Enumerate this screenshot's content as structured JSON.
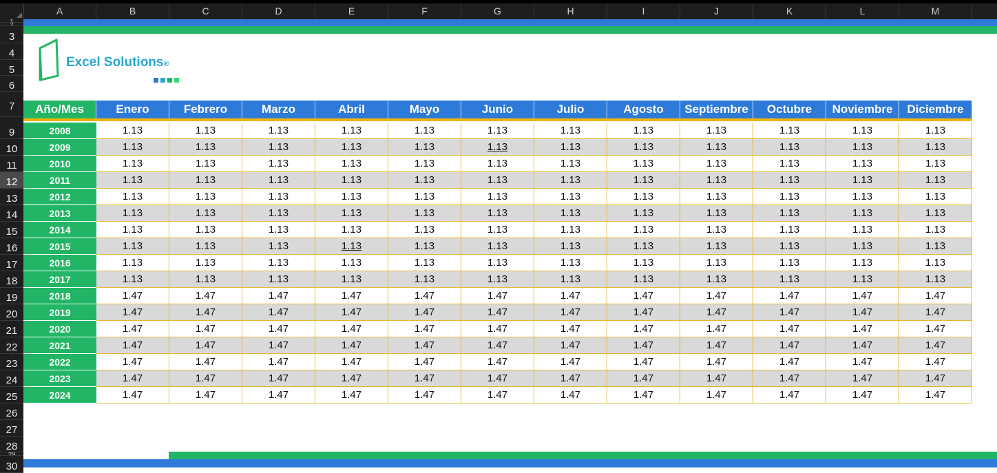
{
  "columns": [
    "A",
    "B",
    "C",
    "D",
    "E",
    "F",
    "G",
    "H",
    "I",
    "J",
    "K",
    "L",
    "M"
  ],
  "row_numbers": [
    "1",
    "2",
    "3",
    "4",
    "5",
    "6",
    "7",
    "9",
    "10",
    "11",
    "12",
    "13",
    "14",
    "15",
    "16",
    "17",
    "18",
    "19",
    "20",
    "21",
    "22",
    "23",
    "24",
    "25",
    "26",
    "27",
    "28",
    "29",
    "30"
  ],
  "selected_row": "12",
  "logo": {
    "brand": "Excel Solutions",
    "registered": "®"
  },
  "table": {
    "header": [
      "Año/Mes",
      "Enero",
      "Febrero",
      "Marzo",
      "Abril",
      "Mayo",
      "Junio",
      "Julio",
      "Agosto",
      "Septiembre",
      "Octubre",
      "Noviembre",
      "Diciembre"
    ],
    "rows": [
      {
        "year": "2008",
        "values": [
          "1.13",
          "1.13",
          "1.13",
          "1.13",
          "1.13",
          "1.13",
          "1.13",
          "1.13",
          "1.13",
          "1.13",
          "1.13",
          "1.13"
        ]
      },
      {
        "year": "2009",
        "values": [
          "1.13",
          "1.13",
          "1.13",
          "1.13",
          "1.13",
          "1.13",
          "1.13",
          "1.13",
          "1.13",
          "1.13",
          "1.13",
          "1.13"
        ]
      },
      {
        "year": "2010",
        "values": [
          "1.13",
          "1.13",
          "1.13",
          "1.13",
          "1.13",
          "1.13",
          "1.13",
          "1.13",
          "1.13",
          "1.13",
          "1.13",
          "1.13"
        ]
      },
      {
        "year": "2011",
        "values": [
          "1.13",
          "1.13",
          "1.13",
          "1.13",
          "1.13",
          "1.13",
          "1.13",
          "1.13",
          "1.13",
          "1.13",
          "1.13",
          "1.13"
        ]
      },
      {
        "year": "2012",
        "values": [
          "1.13",
          "1.13",
          "1.13",
          "1.13",
          "1.13",
          "1.13",
          "1.13",
          "1.13",
          "1.13",
          "1.13",
          "1.13",
          "1.13"
        ]
      },
      {
        "year": "2013",
        "values": [
          "1.13",
          "1.13",
          "1.13",
          "1.13",
          "1.13",
          "1.13",
          "1.13",
          "1.13",
          "1.13",
          "1.13",
          "1.13",
          "1.13"
        ]
      },
      {
        "year": "2014",
        "values": [
          "1.13",
          "1.13",
          "1.13",
          "1.13",
          "1.13",
          "1.13",
          "1.13",
          "1.13",
          "1.13",
          "1.13",
          "1.13",
          "1.13"
        ]
      },
      {
        "year": "2015",
        "values": [
          "1.13",
          "1.13",
          "1.13",
          "1.13",
          "1.13",
          "1.13",
          "1.13",
          "1.13",
          "1.13",
          "1.13",
          "1.13",
          "1.13"
        ]
      },
      {
        "year": "2016",
        "values": [
          "1.13",
          "1.13",
          "1.13",
          "1.13",
          "1.13",
          "1.13",
          "1.13",
          "1.13",
          "1.13",
          "1.13",
          "1.13",
          "1.13"
        ]
      },
      {
        "year": "2017",
        "values": [
          "1.13",
          "1.13",
          "1.13",
          "1.13",
          "1.13",
          "1.13",
          "1.13",
          "1.13",
          "1.13",
          "1.13",
          "1.13",
          "1.13"
        ]
      },
      {
        "year": "2018",
        "values": [
          "1.47",
          "1.47",
          "1.47",
          "1.47",
          "1.47",
          "1.47",
          "1.47",
          "1.47",
          "1.47",
          "1.47",
          "1.47",
          "1.47"
        ]
      },
      {
        "year": "2019",
        "values": [
          "1.47",
          "1.47",
          "1.47",
          "1.47",
          "1.47",
          "1.47",
          "1.47",
          "1.47",
          "1.47",
          "1.47",
          "1.47",
          "1.47"
        ]
      },
      {
        "year": "2020",
        "values": [
          "1.47",
          "1.47",
          "1.47",
          "1.47",
          "1.47",
          "1.47",
          "1.47",
          "1.47",
          "1.47",
          "1.47",
          "1.47",
          "1.47"
        ]
      },
      {
        "year": "2021",
        "values": [
          "1.47",
          "1.47",
          "1.47",
          "1.47",
          "1.47",
          "1.47",
          "1.47",
          "1.47",
          "1.47",
          "1.47",
          "1.47",
          "1.47"
        ]
      },
      {
        "year": "2022",
        "values": [
          "1.47",
          "1.47",
          "1.47",
          "1.47",
          "1.47",
          "1.47",
          "1.47",
          "1.47",
          "1.47",
          "1.47",
          "1.47",
          "1.47"
        ]
      },
      {
        "year": "2023",
        "values": [
          "1.47",
          "1.47",
          "1.47",
          "1.47",
          "1.47",
          "1.47",
          "1.47",
          "1.47",
          "1.47",
          "1.47",
          "1.47",
          "1.47"
        ]
      },
      {
        "year": "2024",
        "values": [
          "1.47",
          "1.47",
          "1.47",
          "1.47",
          "1.47",
          "1.47",
          "1.47",
          "1.47",
          "1.47",
          "1.47",
          "1.47",
          "1.47"
        ]
      }
    ]
  },
  "colors": {
    "blue": "#2e7ad8",
    "green": "#23b566",
    "gold": "#f2b200",
    "stripe": "#d9d9d9",
    "logo_text": "#2aa7cc",
    "logo_squares": [
      "#2e7ad8",
      "#2aa7cc",
      "#23b566",
      "#3ad37a"
    ]
  }
}
